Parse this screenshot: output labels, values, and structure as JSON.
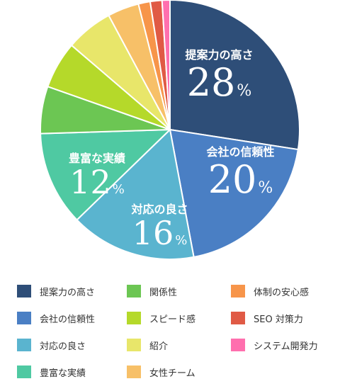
{
  "chart_data": {
    "type": "pie",
    "slices": [
      {
        "name": "提案力の高さ",
        "value": 28,
        "color": "#2e4e78"
      },
      {
        "name": "会社の信頼性",
        "value": 20,
        "color": "#4a7fc4"
      },
      {
        "name": "対応の良さ",
        "value": 16,
        "color": "#5ab4cf"
      },
      {
        "name": "豊富な実績",
        "value": 12,
        "color": "#4fc9a2"
      },
      {
        "name": "関係性",
        "value": 6,
        "color": "#6cc653"
      },
      {
        "name": "スピード感",
        "value": 6,
        "color": "#b5d92a"
      },
      {
        "name": "紹介",
        "value": 6,
        "color": "#e8e66a"
      },
      {
        "name": "女性チーム",
        "value": 4,
        "color": "#f7c068"
      },
      {
        "name": "体制の安心感",
        "value": 1.5,
        "color": "#f7954a"
      },
      {
        "name": "SEO 対策力",
        "value": 1.5,
        "color": "#e05a45"
      },
      {
        "name": "システム開発力",
        "value": 1,
        "color": "#ff6fae"
      }
    ],
    "labels": [
      {
        "name": "提案力の高さ",
        "value": "28",
        "unit": "%"
      },
      {
        "name": "会社の信頼性",
        "value": "20",
        "unit": "%"
      },
      {
        "name": "対応の良さ",
        "value": "16",
        "unit": "%"
      },
      {
        "name": "豊富な実績",
        "value": "12",
        "unit": "%"
      }
    ],
    "legend": [
      {
        "label": "提案力の高さ",
        "color": "#2e4e78"
      },
      {
        "label": "関係性",
        "color": "#6cc653"
      },
      {
        "label": "体制の安心感",
        "color": "#f7954a"
      },
      {
        "label": "会社の信頼性",
        "color": "#4a7fc4"
      },
      {
        "label": "スピード感",
        "color": "#b5d92a"
      },
      {
        "label": "SEO 対策力",
        "color": "#e05a45"
      },
      {
        "label": "対応の良さ",
        "color": "#5ab4cf"
      },
      {
        "label": "紹介",
        "color": "#e8e66a"
      },
      {
        "label": "システム開発力",
        "color": "#ff6fae"
      },
      {
        "label": "豊富な実績",
        "color": "#4fc9a2"
      },
      {
        "label": "女性チーム",
        "color": "#f7c068"
      }
    ],
    "legend_placement": "bottom"
  }
}
